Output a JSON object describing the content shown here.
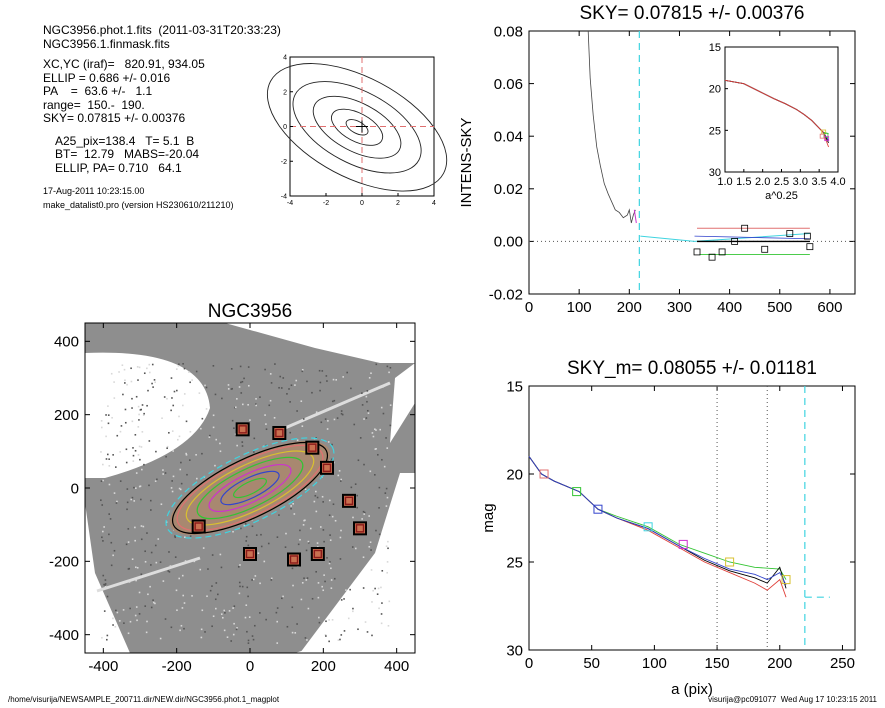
{
  "header_info": {
    "line1": "NGC3956.phot.1.fits  (2011-03-31T20:33:23)",
    "line2": "NGC3956.1.finmask.fits",
    "line3": "XC,YC (iraf)=   820.91, 934.05",
    "line4": "ELLIP = 0.686 +/- 0.016",
    "line5": "PA    =  63.6 +/-   1.1",
    "line6": "range=  150.-  190.",
    "line7": "SKY= 0.07815 +/- 0.00376",
    "line8": "A25_pix=138.4   T= 5.1  B",
    "line9": "BT=  12.79   MABS=-20.04",
    "line10": "ELLIP, PA= 0.710   64.1",
    "date": "17-Aug-2011 10:23:15.00",
    "program": "make_datalist0.pro (version HS230610/211210)"
  },
  "footer": {
    "left": "/home/visurija/NEWSAMPLE_200711.dir/NEW.dir/NGC3956.phot.1_magplot",
    "right": "visurija@pc091077  Wed Aug 17 10:23:15 2011"
  },
  "colors": {
    "black": "#000000",
    "red": "#e0413b",
    "green": "#33c433",
    "cyan": "#3fd4e0",
    "blue": "#3344cc",
    "magenta": "#cc33cc",
    "gold": "#d8c030",
    "pink": "#e07070",
    "gray": "#888888",
    "darkred": "#8b1a1a"
  },
  "chart_data": [
    {
      "type": "contour",
      "title": "",
      "xlim": [
        -4,
        4
      ],
      "ylim": [
        -4,
        4
      ],
      "xticks": [
        "-4",
        "-2",
        "0",
        "2",
        "4"
      ],
      "yticks": [
        "-4",
        "-2",
        "0",
        "2",
        "4"
      ]
    },
    {
      "type": "line",
      "title": "SKY= 0.07815 +/- 0.00376",
      "xlabel": "",
      "ylabel": "INTENS-SKY",
      "xlim": [
        0,
        650
      ],
      "ylim": [
        -0.02,
        0.08
      ],
      "xticks": [
        "0",
        "100",
        "200",
        "300",
        "400",
        "500",
        "600"
      ],
      "yticks": [
        "-0.02",
        "0.00",
        "0.02",
        "0.04",
        "0.06",
        "0.08"
      ],
      "sky_range_x": 220,
      "profile": [
        [
          118,
          0.08
        ],
        [
          122,
          0.062
        ],
        [
          128,
          0.048
        ],
        [
          135,
          0.036
        ],
        [
          142,
          0.029
        ],
        [
          150,
          0.022
        ],
        [
          158,
          0.018
        ],
        [
          165,
          0.015
        ],
        [
          172,
          0.012
        ],
        [
          180,
          0.011
        ],
        [
          188,
          0.009
        ],
        [
          196,
          0.01
        ],
        [
          200,
          0.012
        ],
        [
          204,
          0.007
        ],
        [
          208,
          0.01
        ],
        [
          212,
          0.012
        ]
      ],
      "sky_points": [
        [
          335,
          -0.004
        ],
        [
          365,
          -0.006
        ],
        [
          385,
          -0.004
        ],
        [
          410,
          0.0
        ],
        [
          430,
          0.005
        ],
        [
          470,
          -0.003
        ],
        [
          520,
          0.003
        ],
        [
          555,
          0.002
        ],
        [
          560,
          -0.002
        ]
      ],
      "inset": {
        "xlabel": "a^0.25",
        "xlim": [
          1.0,
          4.0
        ],
        "ylim": [
          30,
          15
        ],
        "xticks": [
          "1.0",
          "1.5",
          "2.0",
          "2.5",
          "3.0",
          "3.5",
          "4.0"
        ],
        "yticks": [
          "15",
          "20",
          "25",
          "30"
        ]
      }
    },
    {
      "type": "image",
      "title": "NGC3956",
      "xlim": [
        -450,
        450
      ],
      "ylim": [
        -450,
        450
      ],
      "xticks": [
        "-400",
        "-200",
        "0",
        "200",
        "400"
      ],
      "yticks": [
        "-400",
        "-200",
        "0",
        "200",
        "400"
      ],
      "sky_boxes": [
        [
          -20,
          160
        ],
        [
          80,
          150
        ],
        [
          170,
          110
        ],
        [
          210,
          55
        ],
        [
          270,
          -35
        ],
        [
          300,
          -110
        ],
        [
          185,
          -180
        ],
        [
          120,
          -195
        ],
        [
          0,
          -180
        ],
        [
          -140,
          -105
        ]
      ]
    },
    {
      "type": "line",
      "title": "SKY_m=  0.08055 +/- 0.01181",
      "xlabel": "a (pix)",
      "ylabel": "mag",
      "xlim": [
        0,
        260
      ],
      "ylim": [
        30,
        15
      ],
      "xticks": [
        "0",
        "50",
        "100",
        "150",
        "200",
        "250"
      ],
      "yticks": [
        "15",
        "20",
        "25",
        "30"
      ],
      "range_lines": [
        150,
        190
      ],
      "sky_x": 220,
      "series": [
        {
          "color": "green",
          "values": [
            [
              0,
              19.0
            ],
            [
              10,
              20.0
            ],
            [
              20,
              20.4
            ],
            [
              40,
              21.0
            ],
            [
              55,
              22.0
            ],
            [
              70,
              22.4
            ],
            [
              95,
              23.0
            ],
            [
              120,
              24.0
            ],
            [
              140,
              24.5
            ],
            [
              160,
              25.0
            ],
            [
              180,
              25.3
            ],
            [
              200,
              25.4
            ],
            [
              205,
              26.0
            ]
          ]
        },
        {
          "color": "red",
          "values": [
            [
              0,
              19.0
            ],
            [
              10,
              20.0
            ],
            [
              20,
              20.4
            ],
            [
              40,
              21.0
            ],
            [
              55,
              22.0
            ],
            [
              70,
              22.5
            ],
            [
              95,
              23.2
            ],
            [
              120,
              24.2
            ],
            [
              140,
              25.0
            ],
            [
              160,
              25.6
            ],
            [
              180,
              26.2
            ],
            [
              190,
              26.6
            ],
            [
              200,
              26.0
            ],
            [
              205,
              27.0
            ]
          ]
        },
        {
          "color": "black",
          "values": [
            [
              0,
              19.0
            ],
            [
              10,
              20.0
            ],
            [
              20,
              20.4
            ],
            [
              40,
              21.0
            ],
            [
              55,
              22.0
            ],
            [
              70,
              22.5
            ],
            [
              95,
              23.1
            ],
            [
              120,
              24.1
            ],
            [
              140,
              24.9
            ],
            [
              160,
              25.5
            ],
            [
              180,
              25.9
            ],
            [
              190,
              26.2
            ],
            [
              200,
              25.3
            ],
            [
              205,
              26.5
            ]
          ]
        },
        {
          "color": "blue",
          "values": [
            [
              0,
              19.0
            ],
            [
              10,
              20.0
            ],
            [
              20,
              20.4
            ],
            [
              40,
              21.0
            ],
            [
              55,
              22.0
            ],
            [
              70,
              22.5
            ],
            [
              95,
              23.1
            ],
            [
              120,
              24.1
            ],
            [
              140,
              24.8
            ],
            [
              160,
              25.4
            ],
            [
              180,
              25.7
            ],
            [
              190,
              26.0
            ],
            [
              200,
              25.6
            ],
            [
              205,
              26.3
            ]
          ]
        }
      ]
    }
  ]
}
